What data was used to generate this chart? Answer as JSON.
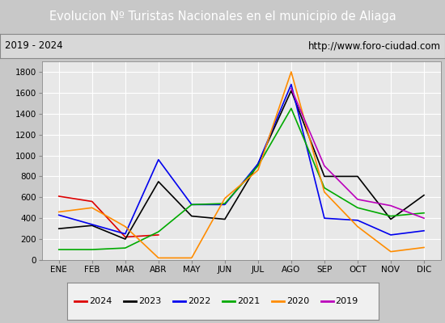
{
  "title": "Evolucion Nº Turistas Nacionales en el municipio de Aliaga",
  "subtitle_left": "2019 - 2024",
  "subtitle_right": "http://www.foro-ciudad.com",
  "months": [
    "ENE",
    "FEB",
    "MAR",
    "ABR",
    "MAY",
    "JUN",
    "JUL",
    "AGO",
    "SEP",
    "OCT",
    "NOV",
    "DIC"
  ],
  "series": {
    "2024": {
      "color": "#dd0000",
      "data": [
        610,
        560,
        220,
        240,
        null,
        null,
        null,
        null,
        null,
        null,
        null,
        null
      ]
    },
    "2023": {
      "color": "#000000",
      "data": [
        300,
        330,
        200,
        750,
        420,
        390,
        920,
        1620,
        800,
        800,
        390,
        620
      ]
    },
    "2022": {
      "color": "#0000ee",
      "data": [
        430,
        340,
        250,
        960,
        530,
        530,
        920,
        1680,
        400,
        380,
        240,
        280
      ]
    },
    "2021": {
      "color": "#00aa00",
      "data": [
        100,
        100,
        115,
        270,
        530,
        540,
        900,
        1450,
        690,
        500,
        420,
        450
      ]
    },
    "2020": {
      "color": "#ff8c00",
      "data": [
        460,
        500,
        320,
        20,
        20,
        590,
        860,
        1800,
        650,
        320,
        80,
        120
      ]
    },
    "2019": {
      "color": "#bb00bb",
      "data": [
        null,
        null,
        null,
        null,
        null,
        null,
        null,
        1640,
        900,
        580,
        520,
        400
      ]
    }
  },
  "ylim": [
    0,
    1900
  ],
  "yticks": [
    0,
    200,
    400,
    600,
    800,
    1000,
    1200,
    1400,
    1600,
    1800
  ],
  "title_bg_color": "#4472c4",
  "title_color": "#ffffff",
  "title_fontsize": 10.5,
  "subtitle_fontsize": 8.5,
  "plot_bg_color": "#e8e8e8",
  "grid_color": "#ffffff",
  "tick_fontsize": 7.5,
  "legend_years": [
    "2024",
    "2023",
    "2022",
    "2021",
    "2020",
    "2019"
  ]
}
